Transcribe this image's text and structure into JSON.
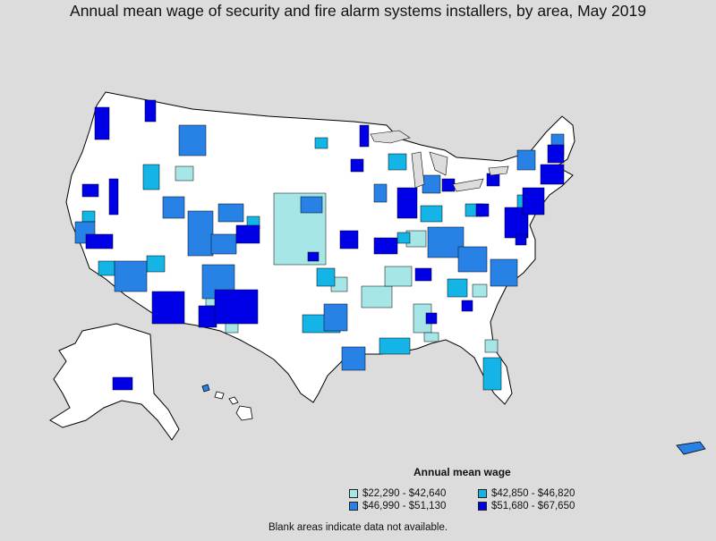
{
  "title": "Annual mean wage of security and fire alarm systems installers, by area, May 2019",
  "legend": {
    "title": "Annual mean wage",
    "items": [
      {
        "label": "$22,290 - $42,640",
        "color": "#a6e6e6"
      },
      {
        "label": "$42,850 - $46,820",
        "color": "#14b4e6"
      },
      {
        "label": "$46,990 - $51,130",
        "color": "#2882e6"
      },
      {
        "label": "$51,680 - $67,650",
        "color": "#0000e6"
      }
    ]
  },
  "footnote": "Blank areas indicate data not available.",
  "colors": {
    "background": "#dcdcdc",
    "no_data": "#ffffff",
    "border": "#000000"
  }
}
